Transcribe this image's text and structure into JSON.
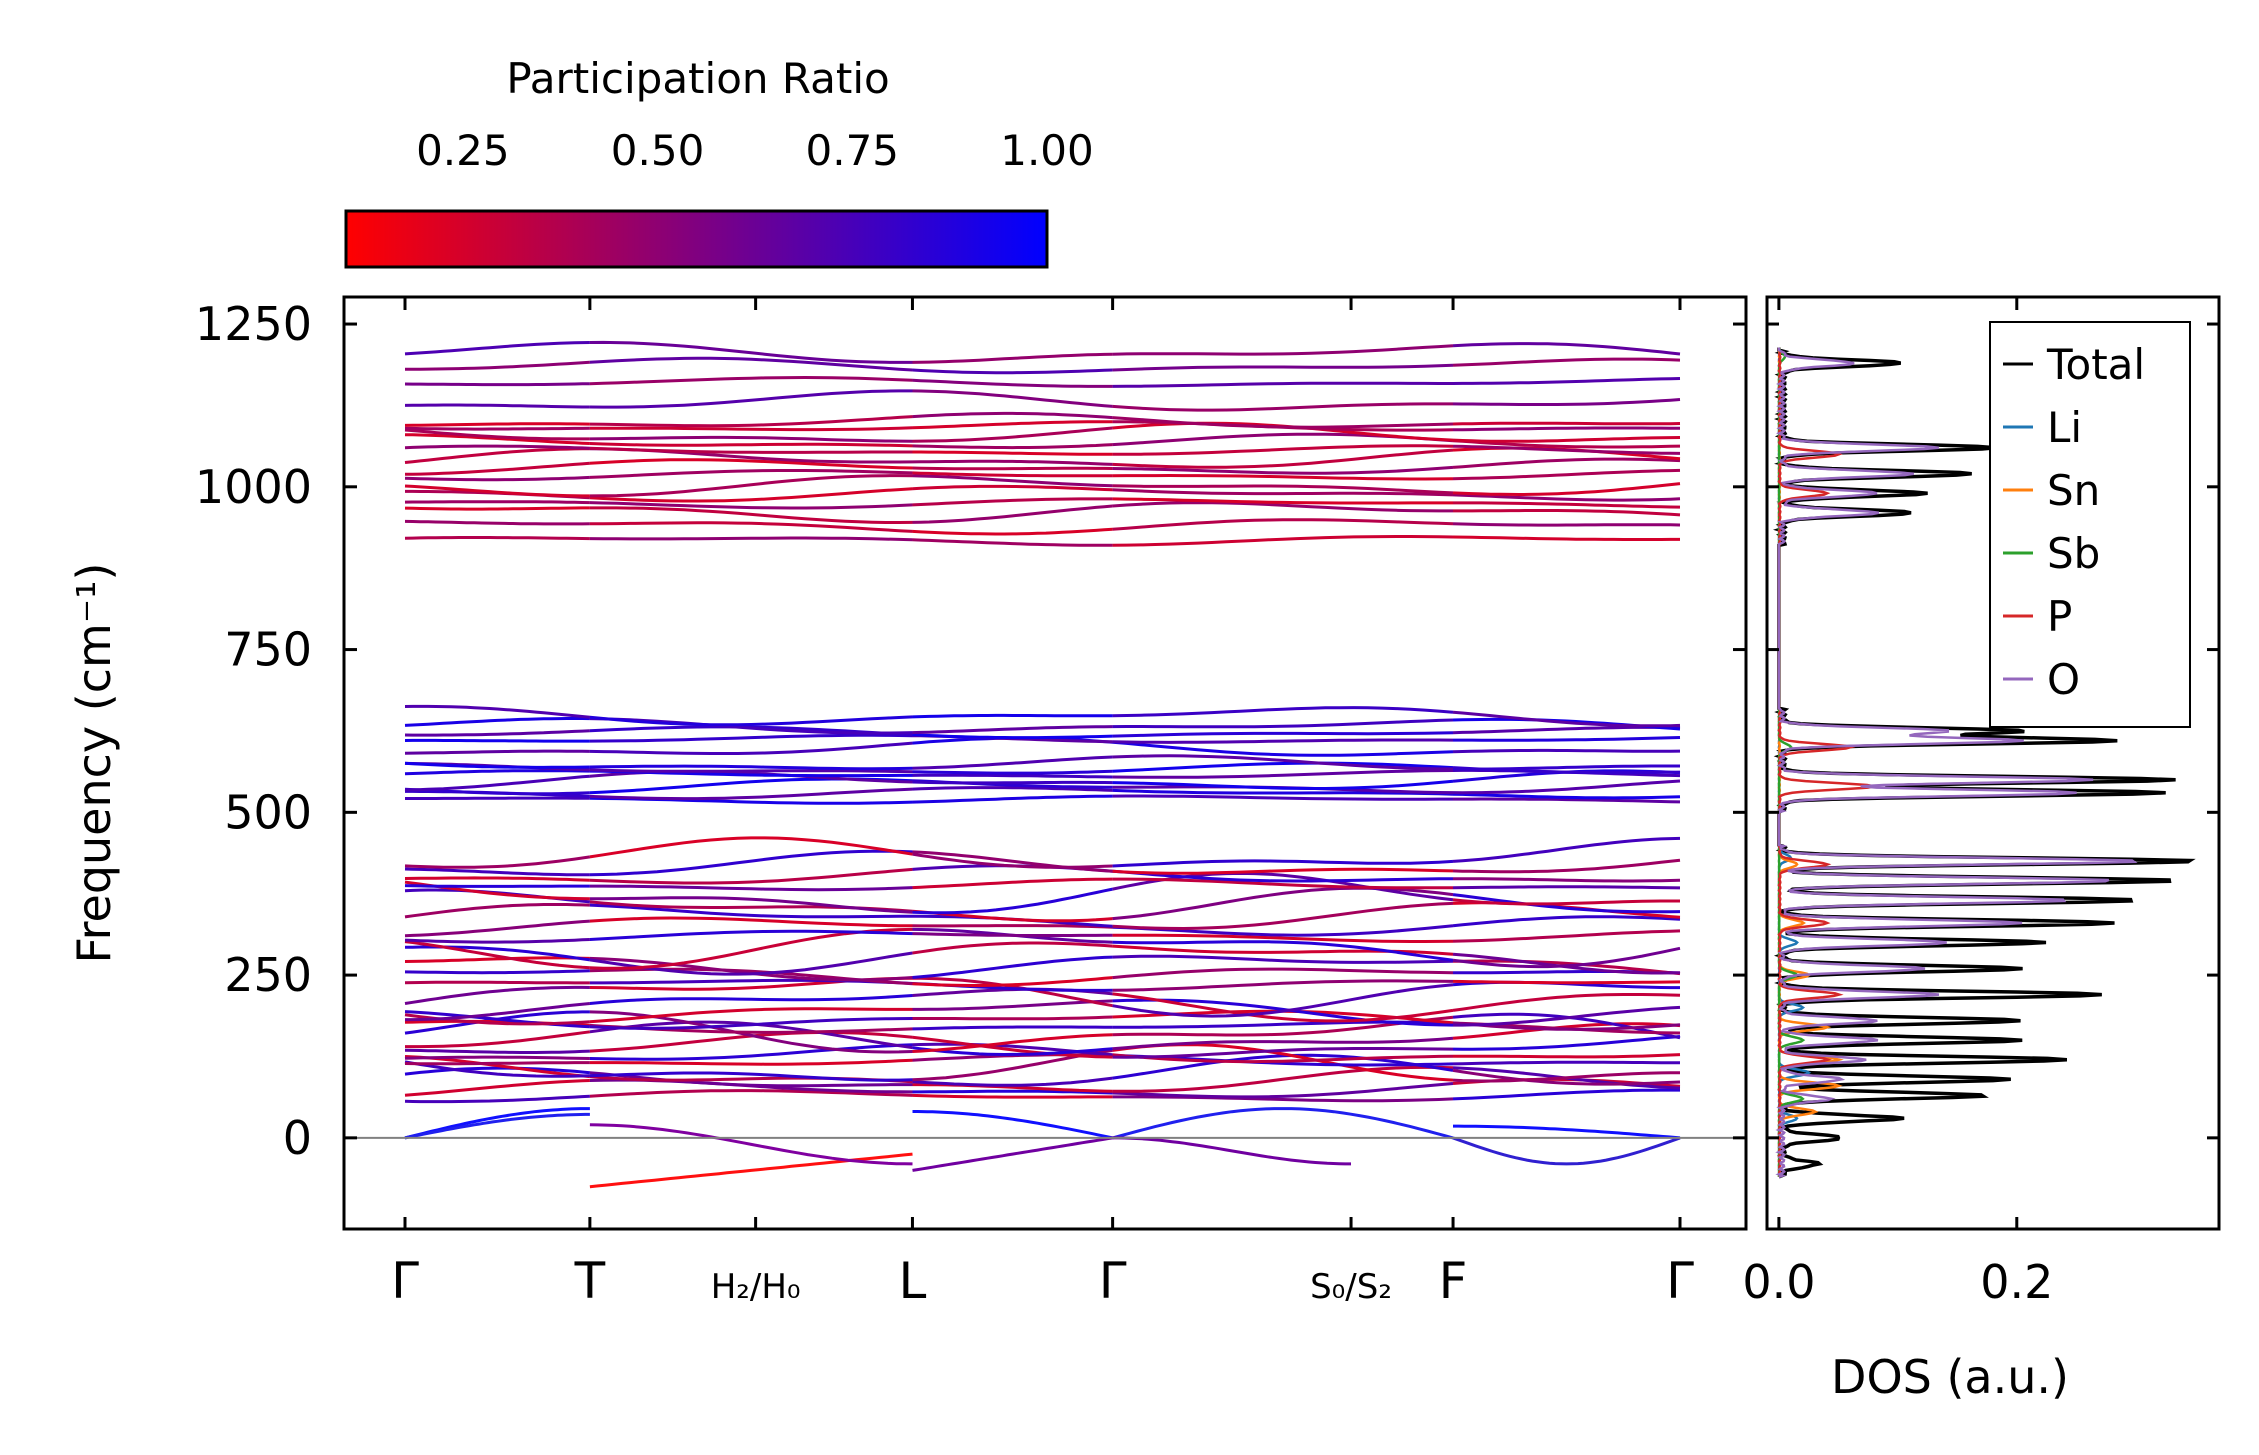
{
  "chart_data": [
    {
      "type": "line",
      "role": "phonon-dispersion",
      "ylabel": "Frequency (cm⁻¹)",
      "xlabel": "",
      "ylim": [
        -140,
        1290
      ],
      "yticks": [
        0,
        250,
        500,
        750,
        1000,
        1250
      ],
      "path_labels": [
        "Γ",
        "T",
        "H₂/H₀",
        "L",
        "Γ",
        "S₀/S₂",
        "F",
        "Γ"
      ],
      "path_positions": [
        0,
        0.145,
        0.275,
        0.398,
        0.555,
        0.742,
        0.822,
        1.0
      ],
      "segment_breaks": [
        0.145,
        0.398,
        0.555,
        0.822
      ],
      "zero_line": 0,
      "colorbar": {
        "title": "Participation Ratio",
        "range": [
          0.1,
          1.0
        ],
        "ticks": [
          "0.25",
          "0.50",
          "0.75",
          "1.00"
        ],
        "tick_values": [
          0.25,
          0.5,
          0.75,
          1.0
        ],
        "color_low": "#ff0000",
        "color_high": "#0000ff"
      },
      "bands": {
        "high_group": [
          918,
          940,
          962,
          975,
          990,
          1002,
          1018,
          1030,
          1042,
          1055,
          1068,
          1080,
          1092,
          1100,
          1130,
          1160,
          1185,
          1205
        ],
        "mid_group": [
          520,
          530,
          540,
          548,
          558,
          566,
          574,
          598,
          612,
          622,
          632,
          648
        ],
        "low_group": [
          64,
          74,
          86,
          98,
          108,
          118,
          128,
          140,
          150,
          160,
          170,
          182,
          195,
          208,
          222,
          236,
          250,
          265,
          280,
          295,
          310,
          325,
          340,
          356,
          372,
          388,
          402,
          418,
          432
        ],
        "acoustic_max": 45,
        "imaginary_min": -75
      }
    },
    {
      "type": "line",
      "role": "density-of-states",
      "xlabel": "DOS (a.u.)",
      "xlim": [
        -0.01,
        0.37
      ],
      "xticks": [
        "0.0",
        "0.2"
      ],
      "xtick_values": [
        0.0,
        0.2
      ],
      "ylim": [
        -140,
        1290
      ],
      "legend_position": "top-right",
      "series": [
        {
          "name": "Total",
          "color": "#000000",
          "peaks": [
            [
              1190,
              0.1
            ],
            [
              1060,
              0.18
            ],
            [
              1020,
              0.16
            ],
            [
              990,
              0.12
            ],
            [
              960,
              0.11
            ],
            [
              625,
              0.2
            ],
            [
              610,
              0.28
            ],
            [
              550,
              0.33
            ],
            [
              530,
              0.32
            ],
            [
              425,
              0.35
            ],
            [
              395,
              0.33
            ],
            [
              365,
              0.3
            ],
            [
              330,
              0.28
            ],
            [
              300,
              0.22
            ],
            [
              260,
              0.2
            ],
            [
              220,
              0.27
            ],
            [
              180,
              0.2
            ],
            [
              150,
              0.2
            ],
            [
              120,
              0.24
            ],
            [
              90,
              0.19
            ],
            [
              65,
              0.17
            ],
            [
              30,
              0.1
            ],
            [
              0,
              0.05
            ],
            [
              -40,
              0.03
            ]
          ]
        },
        {
          "name": "Li",
          "color": "#1f77b4",
          "peaks": [
            [
              430,
              0.01
            ],
            [
              300,
              0.015
            ],
            [
              200,
              0.02
            ],
            [
              100,
              0.025
            ],
            [
              30,
              0.015
            ]
          ]
        },
        {
          "name": "Sn",
          "color": "#ff7f0e",
          "peaks": [
            [
              420,
              0.015
            ],
            [
              330,
              0.02
            ],
            [
              250,
              0.025
            ],
            [
              170,
              0.04
            ],
            [
              120,
              0.05
            ],
            [
              80,
              0.05
            ],
            [
              40,
              0.03
            ]
          ]
        },
        {
          "name": "Sb",
          "color": "#2ca02c",
          "peaks": [
            [
              1200,
              0.005
            ],
            [
              600,
              0.01
            ],
            [
              250,
              0.015
            ],
            [
              150,
              0.02
            ],
            [
              60,
              0.02
            ]
          ]
        },
        {
          "name": "P",
          "color": "#d62728",
          "peaks": [
            [
              1050,
              0.05
            ],
            [
              990,
              0.04
            ],
            [
              600,
              0.06
            ],
            [
              540,
              0.08
            ],
            [
              420,
              0.04
            ],
            [
              330,
              0.04
            ],
            [
              220,
              0.05
            ],
            [
              120,
              0.04
            ]
          ]
        },
        {
          "name": "O",
          "color": "#9467bd",
          "peaks": [
            [
              1190,
              0.06
            ],
            [
              1060,
              0.13
            ],
            [
              1020,
              0.11
            ],
            [
              990,
              0.08
            ],
            [
              960,
              0.08
            ],
            [
              625,
              0.14
            ],
            [
              610,
              0.2
            ],
            [
              550,
              0.26
            ],
            [
              530,
              0.25
            ],
            [
              425,
              0.3
            ],
            [
              395,
              0.28
            ],
            [
              365,
              0.24
            ],
            [
              330,
              0.2
            ],
            [
              300,
              0.14
            ],
            [
              260,
              0.12
            ],
            [
              220,
              0.13
            ],
            [
              180,
              0.08
            ],
            [
              150,
              0.08
            ],
            [
              120,
              0.07
            ],
            [
              90,
              0.05
            ],
            [
              60,
              0.04
            ]
          ]
        }
      ]
    }
  ]
}
